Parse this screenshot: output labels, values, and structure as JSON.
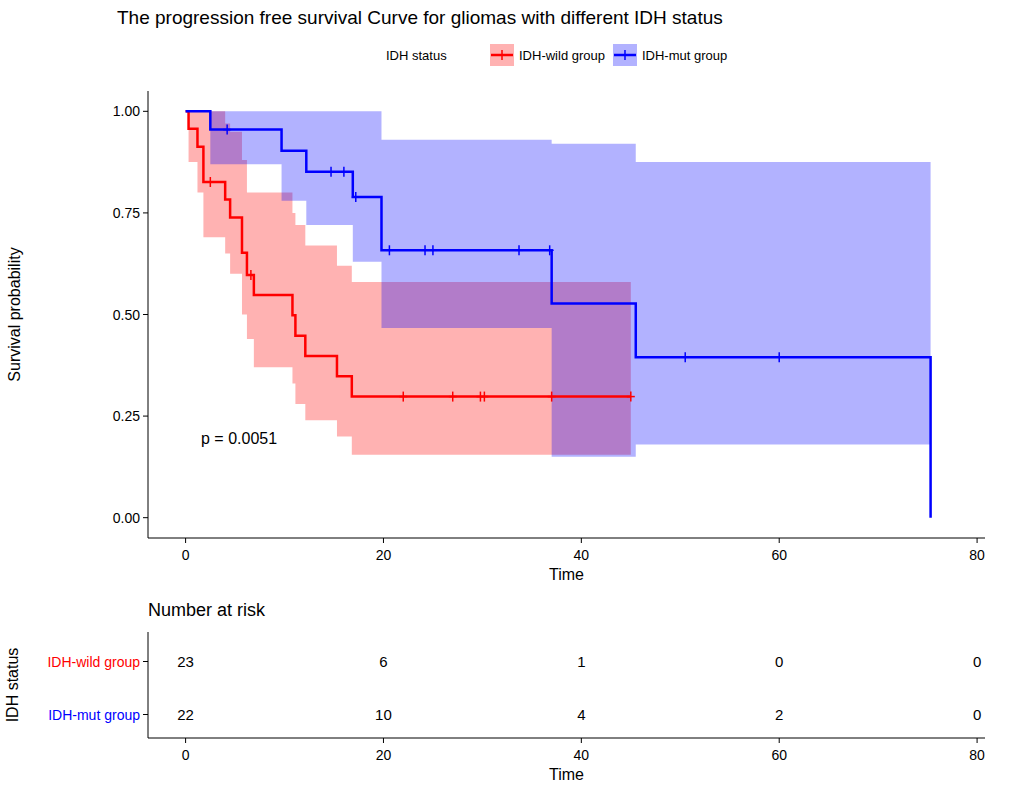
{
  "chart_data": {
    "type": "survival",
    "title": "The progression free survival Curve for gliomas with different IDH status",
    "x_label": "Time",
    "y_label": "Survival probability",
    "legend_title": "IDH status",
    "legend": "top",
    "grid": false,
    "annotation": "p = 0.0051",
    "xlim": [
      -3.8,
      80.8
    ],
    "xticks": [
      0,
      20,
      40,
      60,
      80
    ],
    "ylim": [
      -0.05,
      1.05
    ],
    "yticks": [
      {
        "value": 0,
        "label": "0.00"
      },
      {
        "value": 0.25,
        "label": "0.25"
      },
      {
        "value": 0.5,
        "label": "0.50"
      },
      {
        "value": 0.75,
        "label": "0.75"
      },
      {
        "value": 1,
        "label": "1.00"
      }
    ],
    "series": [
      {
        "name": "IDH-wild group",
        "color": "#ff0000",
        "line_style": "step",
        "marker": "plus",
        "x": [
          0,
          0.3,
          1.2,
          1.8,
          4.0,
          4.5,
          5.7,
          6.2,
          6.9,
          10.8,
          11.1,
          12.1,
          15.3,
          16.8,
          45
        ],
        "values": [
          1,
          0.957,
          0.913,
          0.826,
          0.783,
          0.739,
          0.652,
          0.597,
          0.548,
          0.498,
          0.448,
          0.398,
          0.348,
          0.298,
          0.298
        ],
        "lower": [
          1,
          0.875,
          0.8,
          0.69,
          0.65,
          0.6,
          0.5,
          0.44,
          0.37,
          0.33,
          0.28,
          0.24,
          0.2,
          0.155,
          0.155
        ],
        "upper": [
          1,
          1,
          1,
          1,
          0.97,
          0.95,
          0.88,
          0.8,
          0.8,
          0.75,
          0.72,
          0.67,
          0.62,
          0.58,
          0.58
        ],
        "censored": [
          2.5,
          6.6,
          22,
          27,
          29.8,
          30.2,
          37,
          45
        ],
        "at_risk": [
          23,
          6,
          1,
          0,
          0
        ]
      },
      {
        "name": "IDH-mut group",
        "color": "#0000ff",
        "line_style": "step",
        "marker": "plus",
        "x": [
          0,
          2.5,
          9.7,
          12.2,
          16.9,
          19.8,
          37.0,
          45.5,
          75.3
        ],
        "values": [
          1,
          0.955,
          0.903,
          0.851,
          0.789,
          0.658,
          0.527,
          0.395,
          0
        ],
        "lower": [
          1,
          0.87,
          0.78,
          0.72,
          0.63,
          0.467,
          0.15,
          0.18,
          null
        ],
        "upper": [
          1,
          1,
          1,
          1,
          1,
          0.93,
          0.92,
          0.875,
          null
        ],
        "censored": [
          4.2,
          14.7,
          16.0,
          17.2,
          20.6,
          24.2,
          25.0,
          33.7,
          36.8,
          50.5,
          60.0
        ],
        "at_risk": [
          22,
          10,
          4,
          2,
          0
        ]
      }
    ],
    "risk_table": {
      "title": "Number at risk",
      "x_label": "Time",
      "y_label": "IDH status",
      "times": [
        0,
        20,
        40,
        60,
        80
      ]
    }
  }
}
